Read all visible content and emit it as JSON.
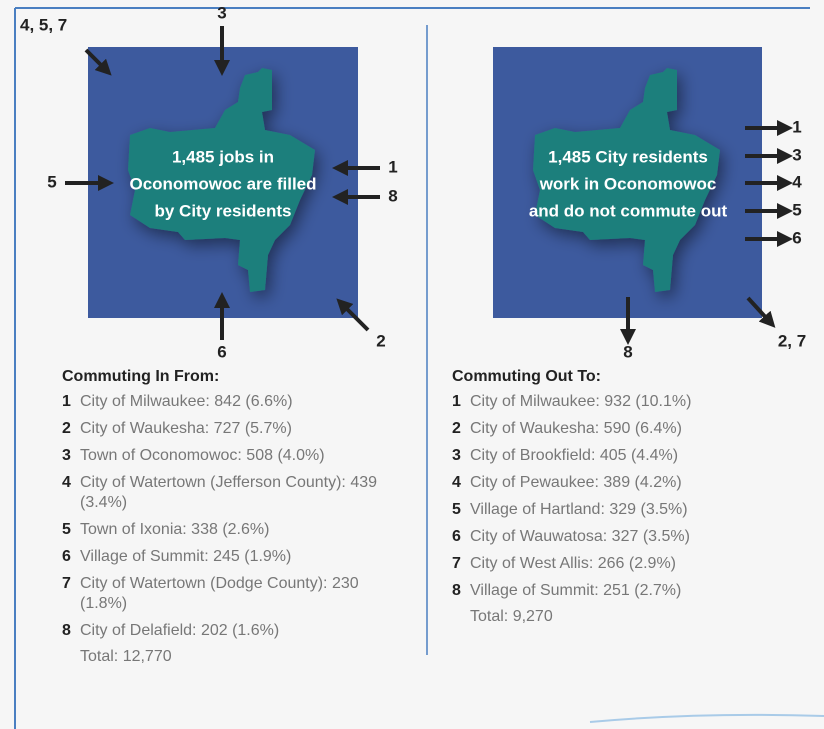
{
  "left_panel": {
    "center_text": [
      "1,485 jobs in",
      "Oconomowoc are filled",
      "by City residents"
    ],
    "arrow_labels": [
      "4, 5, 7",
      "3",
      "5",
      "1",
      "8",
      "6",
      "2"
    ],
    "heading": "Commuting In From:",
    "items": [
      {
        "num": "1",
        "text": "City of Milwaukee: 842 (6.6%)"
      },
      {
        "num": "2",
        "text": "City of Waukesha: 727 (5.7%)"
      },
      {
        "num": "3",
        "text": "Town of Oconomowoc: 508 (4.0%)"
      },
      {
        "num": "4",
        "text": "City of Watertown (Jefferson County): 439 (3.4%)"
      },
      {
        "num": "5",
        "text": "Town of Ixonia: 338 (2.6%)"
      },
      {
        "num": "6",
        "text": "Village of Summit: 245 (1.9%)"
      },
      {
        "num": "7",
        "text": "City of Watertown (Dodge County): 230 (1.8%)"
      },
      {
        "num": "8",
        "text": "City of Delafield: 202 (1.6%)"
      }
    ],
    "total": "Total: 12,770"
  },
  "right_panel": {
    "center_text": [
      "1,485 City residents",
      "work in Oconomowoc",
      "and do not commute out"
    ],
    "arrow_labels": [
      "1",
      "3",
      "4",
      "5",
      "6",
      "8",
      "2, 7"
    ],
    "heading": "Commuting Out To:",
    "items": [
      {
        "num": "1",
        "text": "City of Milwaukee: 932 (10.1%)"
      },
      {
        "num": "2",
        "text": "City of Waukesha: 590 (6.4%)"
      },
      {
        "num": "3",
        "text": "City of Brookfield: 405 (4.4%)"
      },
      {
        "num": "4",
        "text": "City of Pewaukee: 389 (4.2%)"
      },
      {
        "num": "5",
        "text": "Village of Hartland: 329 (3.5%)"
      },
      {
        "num": "6",
        "text": "City of Wauwatosa: 327 (3.5%)"
      },
      {
        "num": "7",
        "text": "City of West Allis: 266 (2.9%)"
      },
      {
        "num": "8",
        "text": "Village of Summit: 251 (2.7%)"
      }
    ],
    "total": "Total: 9,270"
  }
}
